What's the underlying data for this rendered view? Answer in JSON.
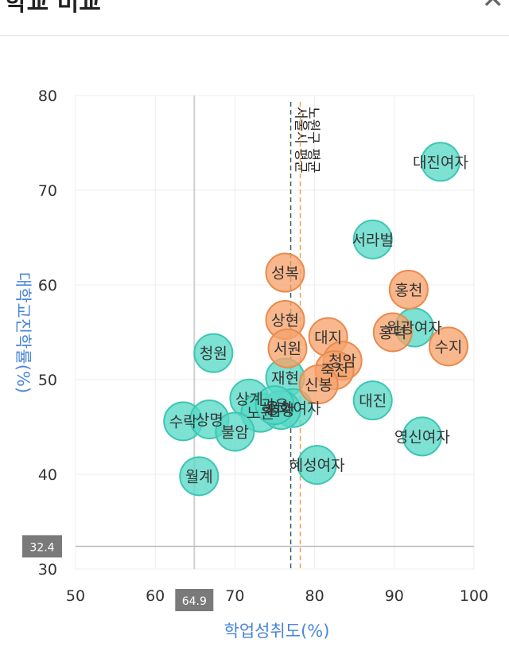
{
  "header": {
    "title": "학교 비교",
    "close_icon": "close-icon"
  },
  "colors": {
    "teal": "#58d9c6",
    "teal_stroke": "#3cc6b2",
    "orange": "#f6a36b",
    "orange_stroke": "#ea8a4d",
    "axis_title": "#4a86d9",
    "badge": "#7a7a7a",
    "ref_dark": "#3d5a5a",
    "ref_orange": "#f0a050"
  },
  "chart_data": {
    "type": "scatter",
    "xlabel": "학업성취도(%)",
    "ylabel": "대학교진학률(%)",
    "xlim": [
      50,
      100
    ],
    "ylim": [
      30,
      80
    ],
    "xticks": [
      50,
      60,
      70,
      80,
      90,
      100
    ],
    "yticks": [
      30,
      40,
      50,
      60,
      70,
      80
    ],
    "grid": true,
    "crosshair": {
      "x": 64.9,
      "y": 32.4,
      "x_label": "64.9",
      "y_label": "32.4"
    },
    "reference_lines": [
      {
        "label": "서울시 평균",
        "x": 77.0,
        "style": "dashed",
        "color_key": "ref_dark"
      },
      {
        "label": "노원구 평균",
        "x": 78.2,
        "style": "dashed",
        "color_key": "ref_orange"
      }
    ],
    "series": [
      {
        "color_key": "teal",
        "points": [
          {
            "label": "대진여자",
            "x": 95.8,
            "y": 73.0
          },
          {
            "label": "서라벌",
            "x": 87.3,
            "y": 64.8
          },
          {
            "label": "대진",
            "x": 87.3,
            "y": 47.8
          },
          {
            "label": "영신여자",
            "x": 93.5,
            "y": 44.0
          },
          {
            "label": "혜성여자",
            "x": 80.3,
            "y": 41.0
          },
          {
            "label": "청원",
            "x": 67.3,
            "y": 52.8
          },
          {
            "label": "재현",
            "x": 76.3,
            "y": 50.2
          },
          {
            "label": "상계",
            "x": 71.8,
            "y": 48.0
          },
          {
            "label": "노원",
            "x": 73.2,
            "y": 46.5
          },
          {
            "label": "용화여자",
            "x": 77.3,
            "y": 47.0
          },
          {
            "label": "수락",
            "x": 63.5,
            "y": 45.6
          },
          {
            "label": "상명",
            "x": 66.8,
            "y": 45.8
          },
          {
            "label": "불암",
            "x": 70.0,
            "y": 44.5
          },
          {
            "label": "월계",
            "x": 65.5,
            "y": 39.8
          },
          {
            "label": "염광",
            "x": 75.8,
            "y": 46.8
          },
          {
            "label": "광운",
            "x": 75.0,
            "y": 47.3
          },
          {
            "label": "원광여자",
            "x": 92.5,
            "y": 55.5
          }
        ]
      },
      {
        "color_key": "orange",
        "points": [
          {
            "label": "성복",
            "x": 76.3,
            "y": 61.3
          },
          {
            "label": "홍천",
            "x": 91.8,
            "y": 59.5
          },
          {
            "label": "상현",
            "x": 76.3,
            "y": 56.3
          },
          {
            "label": "서원",
            "x": 76.6,
            "y": 53.3
          },
          {
            "label": "대지",
            "x": 81.7,
            "y": 54.5
          },
          {
            "label": "홍덕",
            "x": 89.8,
            "y": 55.0
          },
          {
            "label": "수지",
            "x": 96.8,
            "y": 53.5
          },
          {
            "label": "청암",
            "x": 83.5,
            "y": 52.0
          },
          {
            "label": "죽전",
            "x": 82.5,
            "y": 51.0
          },
          {
            "label": "신봉",
            "x": 80.5,
            "y": 49.5
          }
        ]
      }
    ]
  }
}
